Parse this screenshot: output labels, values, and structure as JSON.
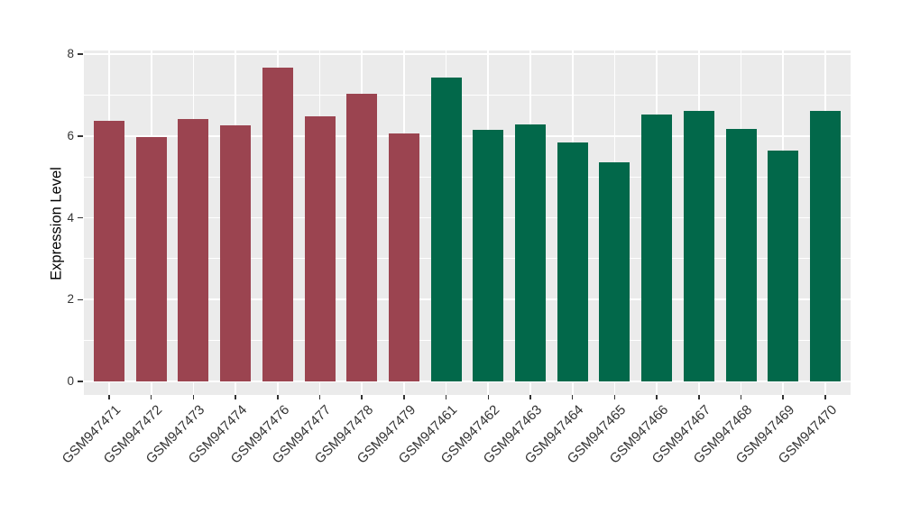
{
  "chart_data": {
    "type": "bar",
    "title": "",
    "ylabel": "Expression Level",
    "xlabel": "",
    "ylim": [
      0,
      8
    ],
    "yticks": [
      0,
      2,
      4,
      6,
      8
    ],
    "grid": "on",
    "legend_position": "none",
    "categories": [
      "GSM947471",
      "GSM947472",
      "GSM947473",
      "GSM947474",
      "GSM947476",
      "GSM947477",
      "GSM947478",
      "GSM947479",
      "GSM947461",
      "GSM947462",
      "GSM947463",
      "GSM947464",
      "GSM947465",
      "GSM947466",
      "GSM947467",
      "GSM947468",
      "GSM947469",
      "GSM947470"
    ],
    "values": [
      6.38,
      5.97,
      6.41,
      6.26,
      7.68,
      6.49,
      7.03,
      6.06,
      7.44,
      6.16,
      6.28,
      5.84,
      5.35,
      6.53,
      6.62,
      6.17,
      5.64,
      6.62
    ],
    "bar_colors": [
      "#9B4450",
      "#9B4450",
      "#9B4450",
      "#9B4450",
      "#9B4450",
      "#9B4450",
      "#9B4450",
      "#9B4450",
      "#02684A",
      "#02684A",
      "#02684A",
      "#02684A",
      "#02684A",
      "#02684A",
      "#02684A",
      "#02684A",
      "#02684A",
      "#02684A"
    ],
    "colors": {
      "group_red": "#9B4450",
      "group_green": "#02684A",
      "panel_background": "#EBEBEB",
      "gridline": "#FFFFFF",
      "tick_text": "#333333",
      "axis_title_text": "#000000"
    }
  }
}
